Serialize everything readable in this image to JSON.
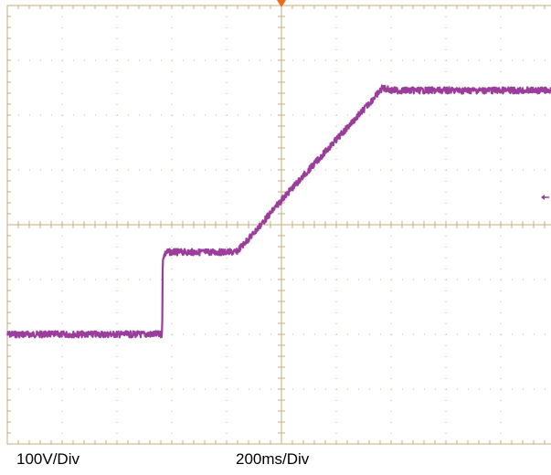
{
  "chart_data": {
    "type": "line",
    "title": "",
    "xlabel": "",
    "ylabel": "",
    "vertical_scale": "100V/Div",
    "horizontal_scale": "200ms/Div",
    "x_unit": "ms",
    "y_unit": "V",
    "xlim": [
      -1000,
      1000
    ],
    "ylim": [
      -400,
      400
    ],
    "grid": true,
    "trigger_position_ms": 0,
    "trigger_level_v": 50,
    "series": [
      {
        "color": "#9b3d9b",
        "x": [
          -1000,
          -435,
          -433,
          -420,
          -220,
          -165,
          -100,
          0,
          100,
          200,
          300,
          370,
          400,
          600,
          800,
          1000
        ],
        "y": [
          -200,
          -200,
          -60,
          -50,
          -50,
          -50,
          -15,
          45,
          100,
          155,
          210,
          250,
          245,
          245,
          245,
          245
        ]
      }
    ]
  },
  "colors": {
    "grid": "#c8ad7c",
    "trace": "#9b3d9b",
    "trigger_marker": "#f06a1a",
    "level_marker": "#9b3d9b"
  }
}
